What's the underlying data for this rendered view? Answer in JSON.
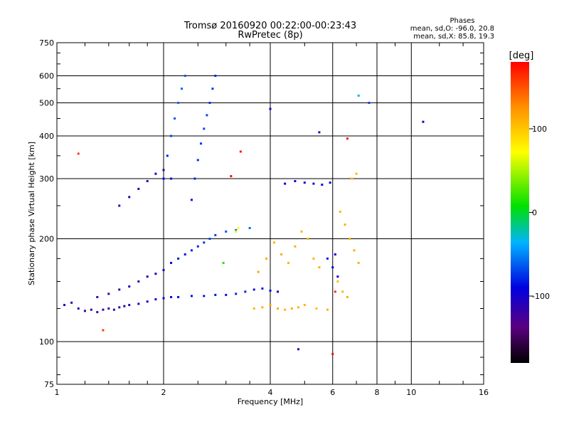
{
  "chart_data": {
    "type": "scatter",
    "title": "Tromsø 20160920 00:22:00-00:23:43",
    "subtitle": "RwPretec (8p)",
    "xlabel": "Frequency [MHz]",
    "ylabel": "Stationary phase Virtual Height [km]",
    "x_scale": "log",
    "y_scale": "log",
    "xlim": [
      1,
      16
    ],
    "ylim": [
      75,
      750
    ],
    "x_ticks": [
      1,
      2,
      4,
      6,
      8,
      10,
      16
    ],
    "y_ticks": [
      75,
      100,
      200,
      300,
      400,
      500,
      600,
      750
    ],
    "grid": true,
    "stats": {
      "title": "Phases",
      "line1": "mean, sd,O: -96.0, 20.8",
      "line2": "mean, sd,X:  85.8, 19.3"
    },
    "colorbar": {
      "label": "[deg]",
      "ticks": [
        100,
        0,
        -100
      ],
      "range": [
        -180,
        180
      ]
    },
    "series": [
      {
        "points": [
          [
            1.05,
            128,
            -110
          ],
          [
            1.1,
            130,
            -115
          ],
          [
            1.15,
            125,
            -120
          ],
          [
            1.2,
            123,
            -125
          ],
          [
            1.25,
            124,
            -120
          ],
          [
            1.3,
            122,
            -125
          ],
          [
            1.35,
            124,
            -120
          ],
          [
            1.4,
            125,
            -125
          ],
          [
            1.45,
            124,
            -120
          ],
          [
            1.5,
            126,
            -120
          ],
          [
            1.55,
            127,
            -115
          ],
          [
            1.6,
            128,
            -120
          ],
          [
            1.7,
            129,
            -115
          ],
          [
            1.8,
            131,
            -110
          ],
          [
            1.9,
            133,
            -110
          ],
          [
            2.0,
            134,
            -105
          ],
          [
            2.1,
            135,
            -100
          ],
          [
            2.2,
            135,
            -100
          ],
          [
            2.4,
            136,
            -95
          ],
          [
            2.6,
            136,
            -95
          ],
          [
            2.8,
            137,
            -95
          ],
          [
            3.0,
            137,
            -95
          ],
          [
            3.2,
            138,
            -90
          ],
          [
            3.4,
            140,
            -90
          ],
          [
            3.6,
            142,
            -95
          ],
          [
            3.8,
            143,
            -95
          ],
          [
            4.0,
            141,
            -95
          ],
          [
            4.2,
            140,
            -100
          ]
        ]
      },
      {
        "points": [
          [
            1.3,
            135,
            -120
          ],
          [
            1.4,
            138,
            -125
          ],
          [
            1.5,
            142,
            -120
          ],
          [
            1.6,
            145,
            -115
          ],
          [
            1.7,
            150,
            -115
          ],
          [
            1.8,
            155,
            -110
          ],
          [
            1.9,
            158,
            -110
          ],
          [
            2.0,
            162,
            -105
          ],
          [
            2.1,
            170,
            -100
          ],
          [
            2.2,
            175,
            -95
          ],
          [
            2.3,
            180,
            -95
          ],
          [
            2.4,
            185,
            -90
          ],
          [
            2.5,
            190,
            -90
          ],
          [
            2.6,
            195,
            -85
          ],
          [
            2.7,
            200,
            -80
          ],
          [
            2.8,
            205,
            -80
          ],
          [
            3.0,
            210,
            -75
          ],
          [
            3.2,
            212,
            -70
          ],
          [
            3.5,
            215,
            -70
          ]
        ]
      },
      {
        "points": [
          [
            1.5,
            250,
            -120
          ],
          [
            1.6,
            265,
            -120
          ],
          [
            1.7,
            280,
            -115
          ],
          [
            1.8,
            295,
            -110
          ],
          [
            1.9,
            310,
            -110
          ],
          [
            2.0,
            318,
            -110
          ],
          [
            2.1,
            300,
            -110
          ]
        ]
      },
      {
        "points": [
          [
            2.0,
            300,
            -100
          ],
          [
            2.05,
            350,
            -90
          ],
          [
            2.1,
            400,
            -80
          ],
          [
            2.15,
            450,
            -75
          ],
          [
            2.2,
            500,
            -70
          ],
          [
            2.25,
            550,
            -70
          ],
          [
            2.3,
            600,
            -75
          ]
        ]
      },
      {
        "points": [
          [
            2.4,
            260,
            -95
          ],
          [
            2.45,
            300,
            -90
          ],
          [
            2.5,
            340,
            -85
          ],
          [
            2.55,
            380,
            -85
          ],
          [
            2.6,
            420,
            -80
          ],
          [
            2.65,
            460,
            -80
          ],
          [
            2.7,
            500,
            -85
          ],
          [
            2.75,
            550,
            -85
          ],
          [
            2.8,
            600,
            -90
          ]
        ]
      },
      {
        "points": [
          [
            3.6,
            125,
            110
          ],
          [
            3.8,
            126,
            115
          ],
          [
            4.0,
            128,
            120
          ],
          [
            4.2,
            125,
            115
          ],
          [
            4.4,
            124,
            110
          ],
          [
            4.6,
            125,
            115
          ],
          [
            4.8,
            126,
            110
          ],
          [
            5.0,
            128,
            110
          ],
          [
            5.4,
            125,
            105
          ],
          [
            5.8,
            124,
            110
          ]
        ]
      },
      {
        "points": [
          [
            3.7,
            160,
            120
          ],
          [
            3.9,
            175,
            115
          ],
          [
            4.1,
            195,
            110
          ],
          [
            4.3,
            180,
            115
          ],
          [
            4.5,
            170,
            110
          ],
          [
            4.7,
            190,
            115
          ],
          [
            4.9,
            210,
            110
          ],
          [
            5.1,
            200,
            105
          ],
          [
            5.3,
            175,
            110
          ],
          [
            5.5,
            165,
            115
          ]
        ]
      },
      {
        "points": [
          [
            6.3,
            240,
            110
          ],
          [
            6.5,
            220,
            115
          ],
          [
            6.7,
            200,
            110
          ],
          [
            6.9,
            185,
            115
          ],
          [
            7.1,
            170,
            110
          ],
          [
            6.2,
            150,
            105
          ],
          [
            6.4,
            140,
            110
          ],
          [
            6.6,
            135,
            115
          ],
          [
            6.8,
            300,
            105
          ],
          [
            7.0,
            310,
            110
          ]
        ]
      },
      {
        "points": [
          [
            4.4,
            290,
            -100
          ],
          [
            4.7,
            295,
            -105
          ],
          [
            5.0,
            292,
            -100
          ],
          [
            5.3,
            290,
            -110
          ],
          [
            5.6,
            288,
            -105
          ],
          [
            5.9,
            292,
            -100
          ],
          [
            6.0,
            165,
            -100
          ],
          [
            5.8,
            175,
            -95
          ],
          [
            6.1,
            180,
            -100
          ],
          [
            6.2,
            155,
            -110
          ]
        ]
      },
      {
        "points": [
          [
            3.1,
            305,
            180
          ],
          [
            3.3,
            360,
            170
          ],
          [
            2.95,
            170,
            10
          ],
          [
            3.2,
            210,
            60
          ],
          [
            3.25,
            215,
            70
          ],
          [
            1.15,
            355,
            160
          ],
          [
            1.35,
            108,
            160
          ],
          [
            6.0,
            92,
            175
          ],
          [
            6.1,
            140,
            165
          ],
          [
            6.6,
            393,
            175
          ],
          [
            10.8,
            440,
            -110
          ],
          [
            4.0,
            480,
            -110
          ],
          [
            7.1,
            525,
            -50
          ],
          [
            7.6,
            500,
            -80
          ],
          [
            5.5,
            410,
            -120
          ],
          [
            4.8,
            95,
            -120
          ]
        ]
      }
    ]
  }
}
